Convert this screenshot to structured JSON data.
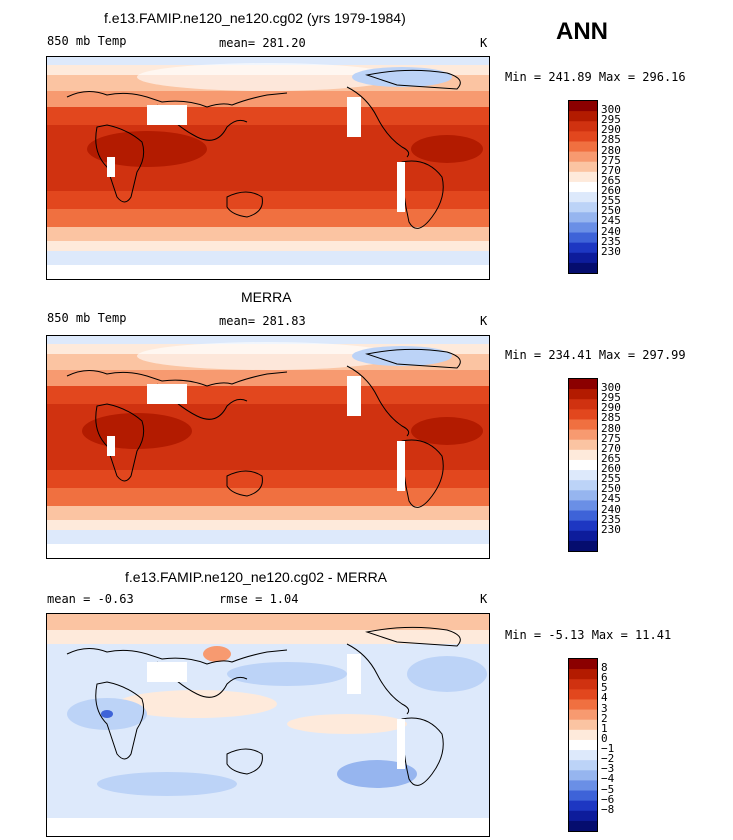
{
  "overall": {
    "season": "ANN"
  },
  "panels": [
    {
      "title": "f.e13.FAMIP.ne120_ne120.cg02 (yrs 1979-1984)",
      "variable": "850 mb Temp",
      "stats": "mean= 281.20",
      "units": "K",
      "minmax": "Min = 241.89 Max = 296.16",
      "kind": "abs"
    },
    {
      "title": "MERRA",
      "variable": "850 mb Temp",
      "stats": "mean= 281.83",
      "units": "K",
      "minmax": "Min = 234.41 Max = 297.99",
      "kind": "abs"
    },
    {
      "title": "f.e13.FAMIP.ne120_ne120.cg02 - MERRA",
      "variable": "mean =  -0.63",
      "stats": "rmse =   1.04",
      "units": "K",
      "minmax": "Min =  -5.13 Max =  11.41",
      "kind": "diff"
    }
  ],
  "colorbars": {
    "abs": {
      "labels": [
        "300",
        "295",
        "290",
        "285",
        "280",
        "275",
        "270",
        "265",
        "260",
        "255",
        "250",
        "245",
        "240",
        "235",
        "230"
      ],
      "colors": [
        "#8b0000",
        "#b31b00",
        "#d03210",
        "#e2471e",
        "#f07040",
        "#f79a70",
        "#fbc4a2",
        "#feeadb",
        "#ffffff",
        "#dde9fb",
        "#bcd3f7",
        "#96b5ef",
        "#6a8fe6",
        "#3e63d8",
        "#1d37c2",
        "#0d1c9b",
        "#050d6e"
      ]
    },
    "diff": {
      "labels": [
        "8",
        "6",
        "5",
        "4",
        "3",
        "2",
        "1",
        "0",
        "−1",
        "−2",
        "−3",
        "−4",
        "−5",
        "−6",
        "−8"
      ],
      "colors": [
        "#8b0000",
        "#b31b00",
        "#d03210",
        "#e2471e",
        "#f07040",
        "#f79a70",
        "#fbc4a2",
        "#feeadb",
        "#ffffff",
        "#dde9fb",
        "#bcd3f7",
        "#96b5ef",
        "#6a8fe6",
        "#3e63d8",
        "#1d37c2",
        "#0d1c9b",
        "#050d6e"
      ]
    }
  },
  "chart_data": [
    {
      "type": "heatmap",
      "title": "f.e13.FAMIP.ne120_ne120.cg02 (yrs 1979-1984)",
      "variable": "850 mb Temp",
      "units": "K",
      "mean": 281.2,
      "min": 241.89,
      "max": 296.16,
      "zonal_mean_by_lat": [
        {
          "lat": 80,
          "value": 255
        },
        {
          "lat": 60,
          "value": 265
        },
        {
          "lat": 45,
          "value": 275
        },
        {
          "lat": 30,
          "value": 288
        },
        {
          "lat": 15,
          "value": 293
        },
        {
          "lat": 0,
          "value": 293
        },
        {
          "lat": -15,
          "value": 290
        },
        {
          "lat": -30,
          "value": 285
        },
        {
          "lat": -45,
          "value": 273
        },
        {
          "lat": -60,
          "value": 262
        },
        {
          "lat": -75,
          "value": 250
        }
      ]
    },
    {
      "type": "heatmap",
      "title": "MERRA",
      "variable": "850 mb Temp",
      "units": "K",
      "mean": 281.83,
      "min": 234.41,
      "max": 297.99,
      "zonal_mean_by_lat": [
        {
          "lat": 80,
          "value": 254
        },
        {
          "lat": 60,
          "value": 266
        },
        {
          "lat": 45,
          "value": 276
        },
        {
          "lat": 30,
          "value": 289
        },
        {
          "lat": 15,
          "value": 294
        },
        {
          "lat": 0,
          "value": 294
        },
        {
          "lat": -15,
          "value": 291
        },
        {
          "lat": -30,
          "value": 286
        },
        {
          "lat": -45,
          "value": 274
        },
        {
          "lat": -60,
          "value": 262
        },
        {
          "lat": -75,
          "value": 248
        }
      ]
    },
    {
      "type": "heatmap",
      "title": "f.e13.FAMIP.ne120_ne120.cg02 - MERRA",
      "variable": "difference",
      "units": "K",
      "mean": -0.63,
      "rmse": 1.04,
      "min": -5.13,
      "max": 11.41,
      "zonal_mean_by_lat": [
        {
          "lat": 80,
          "value": 1
        },
        {
          "lat": 60,
          "value": -1
        },
        {
          "lat": 45,
          "value": -1
        },
        {
          "lat": 30,
          "value": -1
        },
        {
          "lat": 15,
          "value": -1
        },
        {
          "lat": 0,
          "value": 0
        },
        {
          "lat": -15,
          "value": 0
        },
        {
          "lat": -30,
          "value": -1
        },
        {
          "lat": -45,
          "value": -2
        },
        {
          "lat": -60,
          "value": -1
        },
        {
          "lat": -75,
          "value": 1
        }
      ]
    }
  ]
}
